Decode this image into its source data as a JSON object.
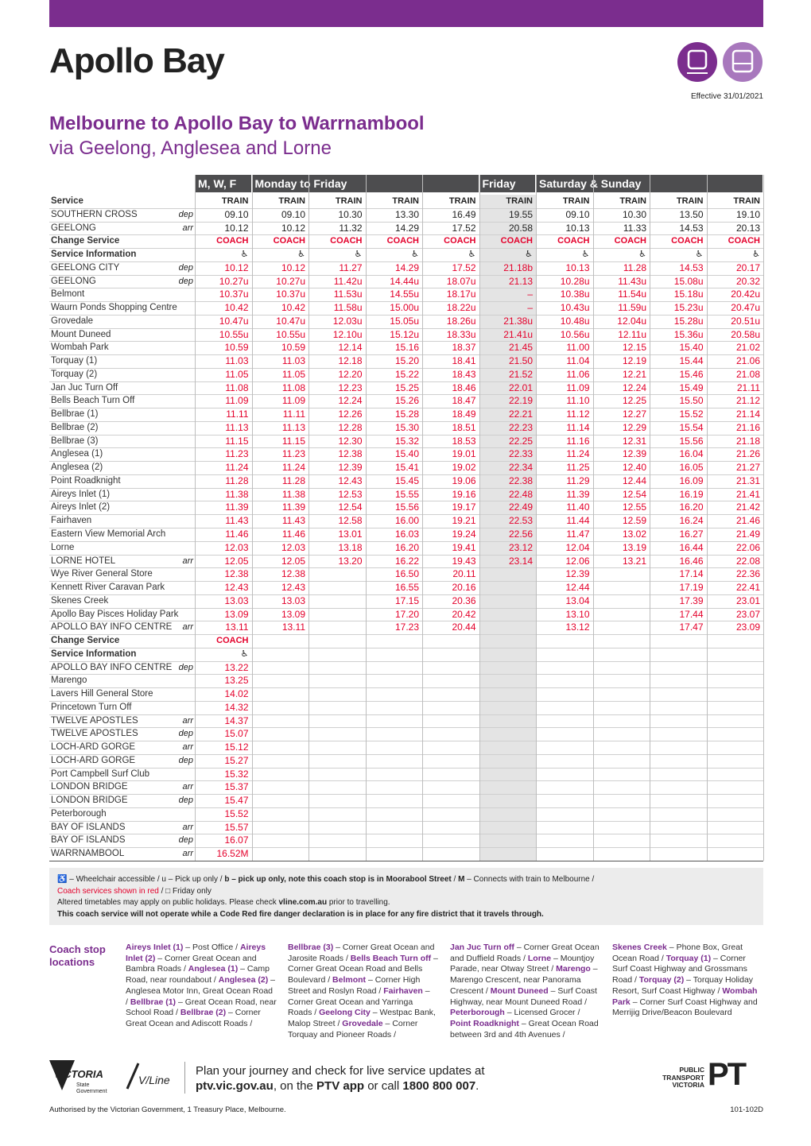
{
  "header": {
    "title": "Apollo Bay",
    "effective": "Effective 31/01/2021",
    "subtitle": "Melbourne to Apollo Bay to Warrnambool",
    "via": "via Geelong, Anglesea and Lorne"
  },
  "table": {
    "coach_color": "#e4002b",
    "friday_column": 5,
    "groups": [
      {
        "label": "M, W, F",
        "span": 1
      },
      {
        "label": "Monday to Friday",
        "span": 4
      },
      {
        "label": "Friday",
        "span": 1
      },
      {
        "label": "Saturday & Sunday",
        "span": 4
      }
    ],
    "rows": [
      {
        "stop": "Service",
        "qual": null,
        "style": "heading",
        "times": [
          "TRAIN",
          "TRAIN",
          "TRAIN",
          "TRAIN",
          "TRAIN",
          "TRAIN",
          "TRAIN",
          "TRAIN",
          "TRAIN",
          "TRAIN"
        ]
      },
      {
        "stop": "SOUTHERN CROSS",
        "qual": "dep",
        "times": [
          "09.10",
          "09.10",
          "10.30",
          "13.30",
          "16.49",
          "19.55",
          "09.10",
          "10.30",
          "13.50",
          "19.10"
        ]
      },
      {
        "stop": "GEELONG",
        "qual": "arr",
        "times": [
          "10.12",
          "10.12",
          "11.32",
          "14.29",
          "17.52",
          "20.58",
          "10.13",
          "11.33",
          "14.53",
          "20.13"
        ]
      },
      {
        "stop": "Change Service",
        "qual": null,
        "style": "heading",
        "times": [
          "COACH",
          "COACH",
          "COACH",
          "COACH",
          "COACH",
          "COACH",
          "COACH",
          "COACH",
          "COACH",
          "COACH"
        ]
      },
      {
        "stop": "Service Information",
        "qual": null,
        "style": "icons",
        "times": [
          "♿",
          "♿",
          "♿",
          "♿",
          "♿",
          "♿",
          "♿",
          "♿",
          "♿",
          "♿"
        ]
      },
      {
        "stop": "GEELONG CITY",
        "qual": "dep",
        "times": [
          "10.12",
          "10.12",
          "11.27",
          "14.29",
          "17.52",
          "21.18b",
          "10.13",
          "11.28",
          "14.53",
          "20.17"
        ]
      },
      {
        "stop": "GEELONG",
        "qual": "dep",
        "times": [
          "10.27u",
          "10.27u",
          "11.42u",
          "14.44u",
          "18.07u",
          "21.13",
          "10.28u",
          "11.43u",
          "15.08u",
          "20.32"
        ]
      },
      {
        "stop": "Belmont",
        "qual": null,
        "times": [
          "10.37u",
          "10.37u",
          "11.53u",
          "14.55u",
          "18.17u",
          "–",
          "10.38u",
          "11.54u",
          "15.18u",
          "20.42u"
        ]
      },
      {
        "stop": "Waurn Ponds Shopping Centre",
        "qual": null,
        "times": [
          "10.42",
          "10.42",
          "11.58u",
          "15.00u",
          "18.22u",
          "–",
          "10.43u",
          "11.59u",
          "15.23u",
          "20.47u"
        ]
      },
      {
        "stop": "Grovedale",
        "qual": null,
        "times": [
          "10.47u",
          "10.47u",
          "12.03u",
          "15.05u",
          "18.26u",
          "21.38u",
          "10.48u",
          "12.04u",
          "15.28u",
          "20.51u"
        ]
      },
      {
        "stop": "Mount Duneed",
        "qual": null,
        "times": [
          "10.55u",
          "10.55u",
          "12.10u",
          "15.12u",
          "18.33u",
          "21.41u",
          "10.56u",
          "12.11u",
          "15.36u",
          "20.58u"
        ]
      },
      {
        "stop": "Wombah Park",
        "qual": null,
        "times": [
          "10.59",
          "10.59",
          "12.14",
          "15.16",
          "18.37",
          "21.45",
          "11.00",
          "12.15",
          "15.40",
          "21.02"
        ]
      },
      {
        "stop": "Torquay (1)",
        "qual": null,
        "times": [
          "11.03",
          "11.03",
          "12.18",
          "15.20",
          "18.41",
          "21.50",
          "11.04",
          "12.19",
          "15.44",
          "21.06"
        ]
      },
      {
        "stop": "Torquay (2)",
        "qual": null,
        "times": [
          "11.05",
          "11.05",
          "12.20",
          "15.22",
          "18.43",
          "21.52",
          "11.06",
          "12.21",
          "15.46",
          "21.08"
        ]
      },
      {
        "stop": "Jan Juc Turn Off",
        "qual": null,
        "times": [
          "11.08",
          "11.08",
          "12.23",
          "15.25",
          "18.46",
          "22.01",
          "11.09",
          "12.24",
          "15.49",
          "21.11"
        ]
      },
      {
        "stop": "Bells Beach Turn Off",
        "qual": null,
        "times": [
          "11.09",
          "11.09",
          "12.24",
          "15.26",
          "18.47",
          "22.19",
          "11.10",
          "12.25",
          "15.50",
          "21.12"
        ]
      },
      {
        "stop": "Bellbrae (1)",
        "qual": null,
        "times": [
          "11.11",
          "11.11",
          "12.26",
          "15.28",
          "18.49",
          "22.21",
          "11.12",
          "12.27",
          "15.52",
          "21.14"
        ]
      },
      {
        "stop": "Bellbrae (2)",
        "qual": null,
        "times": [
          "11.13",
          "11.13",
          "12.28",
          "15.30",
          "18.51",
          "22.23",
          "11.14",
          "12.29",
          "15.54",
          "21.16"
        ]
      },
      {
        "stop": "Bellbrae (3)",
        "qual": null,
        "times": [
          "11.15",
          "11.15",
          "12.30",
          "15.32",
          "18.53",
          "22.25",
          "11.16",
          "12.31",
          "15.56",
          "21.18"
        ]
      },
      {
        "stop": "Anglesea (1)",
        "qual": null,
        "times": [
          "11.23",
          "11.23",
          "12.38",
          "15.40",
          "19.01",
          "22.33",
          "11.24",
          "12.39",
          "16.04",
          "21.26"
        ]
      },
      {
        "stop": "Anglesea (2)",
        "qual": null,
        "times": [
          "11.24",
          "11.24",
          "12.39",
          "15.41",
          "19.02",
          "22.34",
          "11.25",
          "12.40",
          "16.05",
          "21.27"
        ]
      },
      {
        "stop": "Point Roadknight",
        "qual": null,
        "times": [
          "11.28",
          "11.28",
          "12.43",
          "15.45",
          "19.06",
          "22.38",
          "11.29",
          "12.44",
          "16.09",
          "21.31"
        ]
      },
      {
        "stop": "Aireys Inlet (1)",
        "qual": null,
        "times": [
          "11.38",
          "11.38",
          "12.53",
          "15.55",
          "19.16",
          "22.48",
          "11.39",
          "12.54",
          "16.19",
          "21.41"
        ]
      },
      {
        "stop": "Aireys Inlet (2)",
        "qual": null,
        "times": [
          "11.39",
          "11.39",
          "12.54",
          "15.56",
          "19.17",
          "22.49",
          "11.40",
          "12.55",
          "16.20",
          "21.42"
        ]
      },
      {
        "stop": "Fairhaven",
        "qual": null,
        "times": [
          "11.43",
          "11.43",
          "12.58",
          "16.00",
          "19.21",
          "22.53",
          "11.44",
          "12.59",
          "16.24",
          "21.46"
        ]
      },
      {
        "stop": "Eastern View Memorial Arch",
        "qual": null,
        "times": [
          "11.46",
          "11.46",
          "13.01",
          "16.03",
          "19.24",
          "22.56",
          "11.47",
          "13.02",
          "16.27",
          "21.49"
        ]
      },
      {
        "stop": "Lorne",
        "qual": null,
        "times": [
          "12.03",
          "12.03",
          "13.18",
          "16.20",
          "19.41",
          "23.12",
          "12.04",
          "13.19",
          "16.44",
          "22.06"
        ]
      },
      {
        "stop": "LORNE HOTEL",
        "qual": "arr",
        "times": [
          "12.05",
          "12.05",
          "13.20",
          "16.22",
          "19.43",
          "23.14",
          "12.06",
          "13.21",
          "16.46",
          "22.08"
        ]
      },
      {
        "stop": "Wye River General Store",
        "qual": null,
        "times": [
          "12.38",
          "12.38",
          null,
          "16.50",
          "20.11",
          null,
          "12.39",
          null,
          "17.14",
          "22.36"
        ]
      },
      {
        "stop": "Kennett River Caravan Park",
        "qual": null,
        "times": [
          "12.43",
          "12.43",
          null,
          "16.55",
          "20.16",
          null,
          "12.44",
          null,
          "17.19",
          "22.41"
        ]
      },
      {
        "stop": "Skenes Creek",
        "qual": null,
        "times": [
          "13.03",
          "13.03",
          null,
          "17.15",
          "20.36",
          null,
          "13.04",
          null,
          "17.39",
          "23.01"
        ]
      },
      {
        "stop": "Apollo Bay Pisces Holiday Park",
        "qual": null,
        "times": [
          "13.09",
          "13.09",
          null,
          "17.20",
          "20.42",
          null,
          "13.10",
          null,
          "17.44",
          "23.07"
        ]
      },
      {
        "stop": "APOLLO BAY INFO CENTRE",
        "qual": "arr",
        "times": [
          "13.11",
          "13.11",
          null,
          "17.23",
          "20.44",
          null,
          "13.12",
          null,
          "17.47",
          "23.09"
        ]
      },
      {
        "stop": "Change Service",
        "qual": null,
        "style": "heading",
        "times": [
          "COACH"
        ]
      },
      {
        "stop": "Service Information",
        "qual": null,
        "style": "icons",
        "times": [
          "♿"
        ]
      },
      {
        "stop": "APOLLO BAY INFO CENTRE",
        "qual": "dep",
        "times": [
          "13.22"
        ]
      },
      {
        "stop": "Marengo",
        "qual": null,
        "times": [
          "13.25"
        ]
      },
      {
        "stop": "Lavers Hill General Store",
        "qual": null,
        "times": [
          "14.02"
        ]
      },
      {
        "stop": "Princetown Turn Off",
        "qual": null,
        "times": [
          "14.32"
        ]
      },
      {
        "stop": "TWELVE APOSTLES",
        "qual": "arr",
        "times": [
          "14.37"
        ]
      },
      {
        "stop": "TWELVE APOSTLES",
        "qual": "dep",
        "times": [
          "15.07"
        ]
      },
      {
        "stop": "LOCH-ARD GORGE",
        "qual": "arr",
        "times": [
          "15.12"
        ]
      },
      {
        "stop": "LOCH-ARD GORGE",
        "qual": "dep",
        "times": [
          "15.27"
        ]
      },
      {
        "stop": "Port Campbell Surf Club",
        "qual": null,
        "times": [
          "15.32"
        ]
      },
      {
        "stop": "LONDON BRIDGE",
        "qual": "arr",
        "times": [
          "15.37"
        ]
      },
      {
        "stop": "LONDON BRIDGE",
        "qual": "dep",
        "times": [
          "15.47"
        ]
      },
      {
        "stop": "Peterborough",
        "qual": null,
        "times": [
          "15.52"
        ]
      },
      {
        "stop": "BAY OF ISLANDS",
        "qual": "arr",
        "times": [
          "15.57"
        ]
      },
      {
        "stop": "BAY OF ISLANDS",
        "qual": "dep",
        "times": [
          "16.07"
        ]
      },
      {
        "stop": "WARRNAMBOOL",
        "qual": "arr",
        "times": [
          "16.52M"
        ]
      }
    ]
  },
  "notes": [
    [
      {
        "text": "♿ – Wheelchair accessible / u – Pick up only / "
      },
      {
        "text": "b – pick up only, note this coach stop is in Moorabool Street",
        "bold": true
      },
      {
        "text": " / "
      },
      {
        "text": "M",
        "bold": true
      },
      {
        "text": " – Connects with train to Melbourne /"
      }
    ],
    [
      {
        "text": "Coach services shown in red",
        "red": true
      },
      {
        "text": " / □ Friday only"
      }
    ],
    [
      {
        "text": "Altered timetables may apply on public holidays. Please check "
      },
      {
        "text": "vline.com.au",
        "bold": true
      },
      {
        "text": " prior to travelling."
      }
    ],
    [
      {
        "text": "This coach service will not operate while a Code Red fire danger declaration is in place for any fire district that it travels through.",
        "bold": true
      }
    ]
  ],
  "locations": {
    "heading": "Coach stop locations",
    "columns": [
      [
        [
          "Aireys Inlet (1)",
          " – Post Office / "
        ],
        [
          "Aireys Inlet (2)",
          " – Corner Great Ocean and Bambra Roads / "
        ],
        [
          "Anglesea (1)",
          " – Camp Road, near roundabout / "
        ],
        [
          "Anglesea (2)",
          " – Anglesea Motor Inn, Great Ocean Road / "
        ],
        [
          "Bellbrae (1)",
          " – Great Ocean Road, near School Road / "
        ],
        [
          "Bellbrae (2)",
          " – Corner Great Ocean and Adiscott Roads /"
        ]
      ],
      [
        [
          "Bellbrae (3)",
          " – Corner Great Ocean and Jarosite Roads / "
        ],
        [
          "Bells Beach Turn off",
          " – Corner Great Ocean Road and Bells Boulevard / "
        ],
        [
          "Belmont",
          " – Corner High Street and Roslyn Road / "
        ],
        [
          "Fairhaven",
          " – Corner Great Ocean and Yarringa Roads / "
        ],
        [
          "Geelong City",
          " – Westpac Bank, Malop Street / "
        ],
        [
          "Grovedale",
          " – Corner Torquay and Pioneer Roads /"
        ]
      ],
      [
        [
          "Jan Juc Turn off",
          " – Corner Great Ocean and Duffield Roads / "
        ],
        [
          "Lorne",
          " – Mountjoy Parade, near Otway Street / "
        ],
        [
          "Marengo",
          " – Marengo Crescent, near Panorama Crescent / "
        ],
        [
          "Mount Duneed",
          " – Surf Coast Highway, near Mount Duneed Road / "
        ],
        [
          "Peterborough",
          " – Licensed Grocer / "
        ],
        [
          "Point Roadknight",
          " – Great Ocean Road between 3rd and 4th Avenues /"
        ]
      ],
      [
        [
          "Skenes Creek",
          " – Phone Box, Great Ocean Road / "
        ],
        [
          "Torquay (1)",
          " – Corner Surf Coast Highway and Grossmans Road / "
        ],
        [
          "Torquay (2)",
          " – Torquay Holiday Resort, Surf Coast Highway / "
        ],
        [
          "Wombah Park",
          " – Corner Surf Coast Highway and Merrijig Drive/Beacon Boulevard"
        ]
      ]
    ]
  },
  "footer": {
    "plan": "Plan your journey and check for live service updates at",
    "contact": [
      {
        "text": "ptv.vic.gov.au",
        "bold": true
      },
      {
        "text": ", on the "
      },
      {
        "text": "PTV app",
        "bold": true
      },
      {
        "text": " or call "
      },
      {
        "text": "1800 800 007",
        "bold": true
      },
      {
        "text": "."
      }
    ],
    "victoria": "VICTORIA",
    "state": "State",
    "government": "Government",
    "vline": "V/Line",
    "ptv1": "PUBLIC",
    "ptv2": "TRANSPORT",
    "ptv3": "VICTORIA",
    "pt": "PT",
    "authorised": "Authorised by the Victorian Government, 1 Treasury Place, Melbourne.",
    "code": "101-102D"
  }
}
